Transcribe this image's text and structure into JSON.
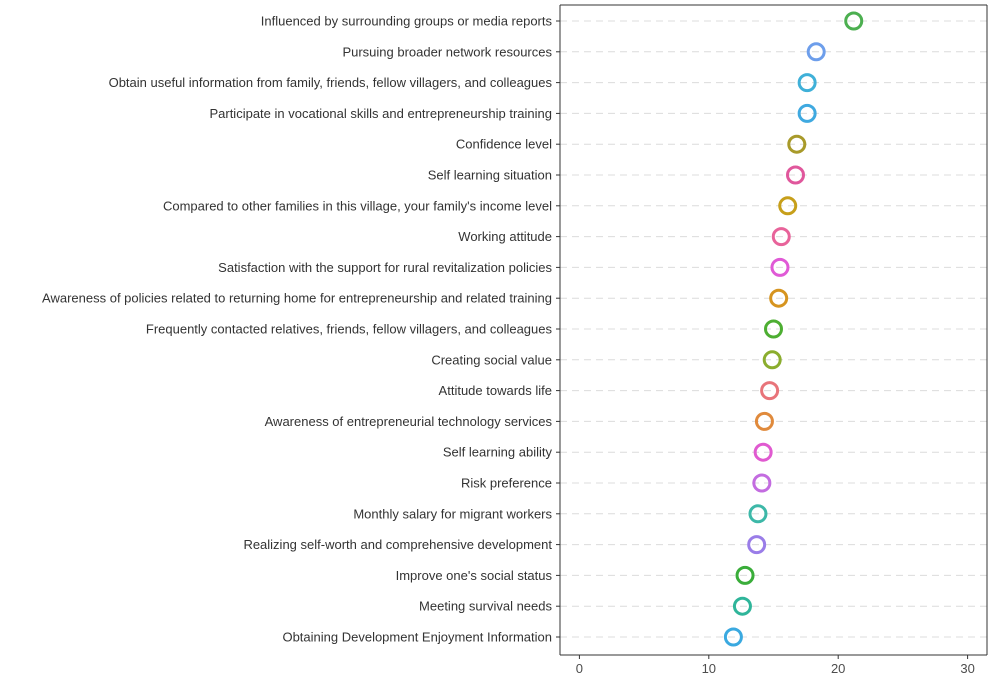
{
  "chart_data": {
    "type": "scatter",
    "title": "",
    "xlabel": "",
    "ylabel": "",
    "xlim": [
      -1.5,
      31.5
    ],
    "xticks": [
      0,
      10,
      20,
      30
    ],
    "grid": "horizontal dashed",
    "points": [
      {
        "label": "Influenced by surrounding groups or media reports",
        "value": 21.2,
        "color": "#4caf50"
      },
      {
        "label": "Pursuing broader network resources",
        "value": 18.3,
        "color": "#6d9eeb"
      },
      {
        "label": "Obtain useful information from family, friends, fellow villagers, and colleagues",
        "value": 17.6,
        "color": "#3fb0d8"
      },
      {
        "label": "Participate in vocational skills and entrepreneurship training",
        "value": 17.6,
        "color": "#3fa9e0"
      },
      {
        "label": "Confidence level",
        "value": 16.8,
        "color": "#a89a2a"
      },
      {
        "label": "Self learning situation",
        "value": 16.7,
        "color": "#e0579c"
      },
      {
        "label": "Compared to other families in this village, your family's income level",
        "value": 16.1,
        "color": "#c79f1a"
      },
      {
        "label": "Working attitude",
        "value": 15.6,
        "color": "#e8639a"
      },
      {
        "label": "Satisfaction with the support for rural revitalization policies",
        "value": 15.5,
        "color": "#e05ad6"
      },
      {
        "label": "Awareness of policies related to returning home for entrepreneurship and related training",
        "value": 15.4,
        "color": "#d6941f"
      },
      {
        "label": "Frequently contacted relatives, friends, fellow villagers, and colleagues",
        "value": 15.0,
        "color": "#4dae32"
      },
      {
        "label": "Creating social value",
        "value": 14.9,
        "color": "#8bad2e"
      },
      {
        "label": "Attitude towards life",
        "value": 14.7,
        "color": "#e8747a"
      },
      {
        "label": "Awareness of entrepreneurial technology services",
        "value": 14.3,
        "color": "#e08a3c"
      },
      {
        "label": "Self learning ability",
        "value": 14.2,
        "color": "#e05ad0"
      },
      {
        "label": "Risk preference",
        "value": 14.1,
        "color": "#c36ce0"
      },
      {
        "label": "Monthly salary for migrant workers",
        "value": 13.8,
        "color": "#3db8a8"
      },
      {
        "label": "Realizing self-worth and comprehensive development",
        "value": 13.7,
        "color": "#9a7de8"
      },
      {
        "label": "Improve one's social status",
        "value": 12.8,
        "color": "#3aad3a"
      },
      {
        "label": "Meeting survival needs",
        "value": 12.6,
        "color": "#2fb59a"
      },
      {
        "label": "Obtaining Development Enjoyment Information",
        "value": 11.9,
        "color": "#3aa9e0"
      }
    ]
  }
}
